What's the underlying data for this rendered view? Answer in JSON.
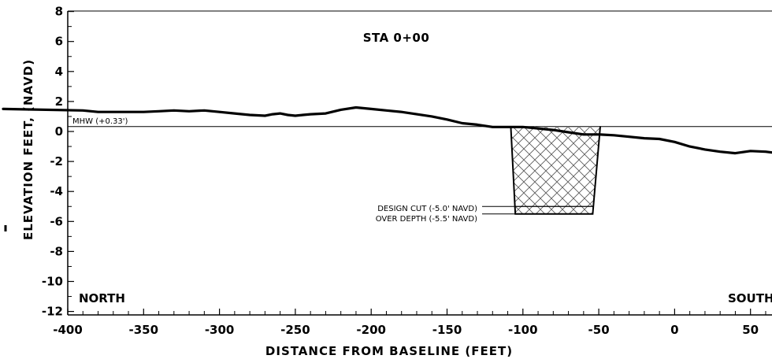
{
  "title": "STA 0+00",
  "x_axis_label": "DISTANCE FROM BASELINE (FEET)",
  "y_axis_label": "ELEVATION FEET, (NAVD)",
  "direction_left": "NORTH",
  "direction_right": "SOUTH",
  "mhw_label": "MHW (+0.33')",
  "design_cut_label": "DESIGN CUT (-5.0' NAVD)",
  "over_depth_label": "OVER DEPTH (-5.5' NAVD)",
  "x_ticks": [
    "-400",
    "-350",
    "-300",
    "-250",
    "-200",
    "-150",
    "-100",
    "-50",
    "0",
    "50"
  ],
  "y_ticks": [
    "8",
    "6",
    "4",
    "2",
    "0",
    "-2",
    "-4",
    "-6",
    "-8",
    "-10",
    "-12"
  ],
  "chart_data": {
    "type": "line",
    "xlim": [
      -400,
      65
    ],
    "ylim": [
      -12,
      8
    ],
    "mhw_elevation": 0.33,
    "design_cut_elevation": -5.0,
    "over_depth_elevation": -5.5,
    "channel": {
      "top_left_x": -108,
      "top_right_x": -49,
      "bottom_left_x": -105,
      "bottom_right_x": -54
    },
    "profile": {
      "x": [
        -400,
        -390,
        -380,
        -370,
        -360,
        -350,
        -340,
        -330,
        -320,
        -310,
        -300,
        -290,
        -280,
        -270,
        -265,
        -260,
        -255,
        -250,
        -245,
        -240,
        -230,
        -220,
        -210,
        -200,
        -190,
        -180,
        -170,
        -160,
        -150,
        -140,
        -130,
        -120,
        -110,
        -100,
        -90,
        -80,
        -70,
        -60,
        -50,
        -40,
        -30,
        -20,
        -10,
        0,
        10,
        20,
        30,
        40,
        50,
        60,
        65
      ],
      "y": [
        1.5,
        1.4,
        1.3,
        1.3,
        1.3,
        1.3,
        1.35,
        1.4,
        1.35,
        1.4,
        1.3,
        1.2,
        1.1,
        1.05,
        1.15,
        1.2,
        1.1,
        1.05,
        1.1,
        1.15,
        1.2,
        1.45,
        1.6,
        1.5,
        1.4,
        1.3,
        1.15,
        1.0,
        0.8,
        0.55,
        0.45,
        0.3,
        0.3,
        0.3,
        0.2,
        0.1,
        -0.05,
        -0.2,
        -0.2,
        -0.25,
        -0.35,
        -0.45,
        -0.5,
        -0.7,
        -1.0,
        -1.2,
        -1.35,
        -1.45,
        -1.3,
        -1.35,
        -1.4
      ]
    }
  }
}
